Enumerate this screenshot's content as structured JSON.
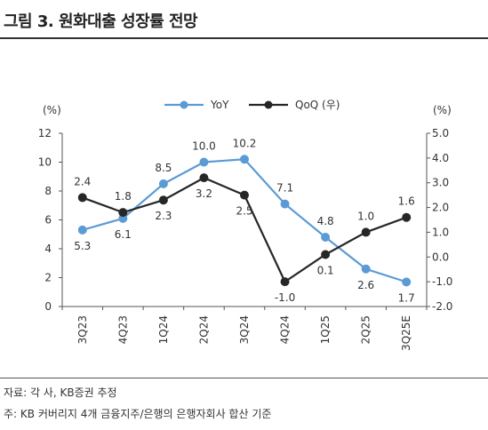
{
  "header": {
    "title": "그림 3. 원화대출 성장률 전망"
  },
  "footer": {
    "source": "자료: 각 사, KB증권 추정",
    "note": "주: KB 커버리지 4개 금융지주/은행의 은행자회사 합산 기준"
  },
  "chart_data": {
    "type": "line",
    "title": "",
    "categories": [
      "3Q23",
      "4Q23",
      "1Q24",
      "2Q24",
      "3Q24",
      "4Q24",
      "1Q25",
      "2Q25",
      "3Q25E"
    ],
    "series": [
      {
        "name": "YoY",
        "axis": "left",
        "color": "#5b9bd5",
        "marker": "circle",
        "values": [
          5.3,
          6.1,
          8.5,
          10.0,
          10.2,
          7.1,
          4.8,
          2.6,
          1.7
        ]
      },
      {
        "name": "QoQ (우)",
        "axis": "right",
        "color": "#262626",
        "marker": "circle",
        "values": [
          2.4,
          1.8,
          2.3,
          3.2,
          2.5,
          -1.0,
          0.1,
          1.0,
          1.6
        ]
      }
    ],
    "y_left": {
      "unit": "(%)",
      "ylim": [
        0,
        12
      ],
      "ticks": [
        "0",
        "2",
        "4",
        "6",
        "8",
        "10",
        "12"
      ]
    },
    "y_right": {
      "unit": "(%)",
      "ylim": [
        -2.0,
        5.0
      ],
      "ticks": [
        "-2.0",
        "-1.0",
        "0.0",
        "1.0",
        "2.0",
        "3.0",
        "4.0",
        "5.0"
      ]
    },
    "grid": false,
    "legend": "top-center"
  }
}
